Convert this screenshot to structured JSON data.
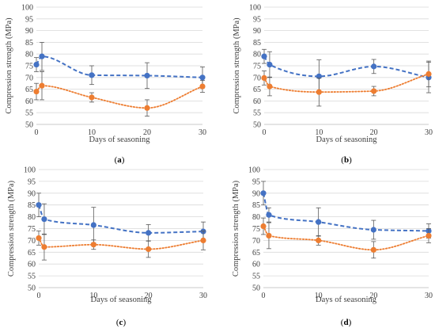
{
  "colors": {
    "series1": "#4472C4",
    "series2": "#ED7D31",
    "grid": "#d9d9d9",
    "axis": "#bfbfbf",
    "text": "#404040"
  },
  "chart_data": [
    {
      "type": "line",
      "panel_label": [
        "(",
        "a",
        ")"
      ],
      "xlabel": "Days of seasoning",
      "ylabel": "Compression strength (MPa)",
      "xlim": [
        0,
        30
      ],
      "ylim": [
        50,
        100
      ],
      "xticks": [
        0,
        10,
        20,
        30
      ],
      "yticks": [
        50,
        55,
        60,
        65,
        70,
        75,
        80,
        85,
        90,
        95,
        100
      ],
      "grid": true,
      "legend": "none",
      "series": [
        {
          "x": [
            0,
            1,
            10,
            20,
            30
          ],
          "y": [
            75.5,
            79,
            71,
            70.8,
            70
          ],
          "err": [
            3,
            6,
            4,
            5.5,
            4.5
          ],
          "style": "dashed"
        },
        {
          "x": [
            0,
            1,
            10,
            20,
            30
          ],
          "y": [
            64,
            66.5,
            61.5,
            57,
            66.2
          ],
          "err": [
            3.5,
            6,
            2,
            3.5,
            2.5
          ],
          "style": "dotted"
        }
      ]
    },
    {
      "type": "line",
      "panel_label": [
        "(",
        "b",
        ")"
      ],
      "xlabel": "Days of seasoning",
      "ylabel": "Compression strength (MPa)",
      "xlim": [
        0,
        30
      ],
      "ylim": [
        50,
        100
      ],
      "xticks": [
        0,
        10,
        20,
        30
      ],
      "yticks": [
        50,
        55,
        60,
        65,
        70,
        75,
        80,
        85,
        90,
        95,
        100
      ],
      "grid": true,
      "legend": "none",
      "series": [
        {
          "x": [
            0,
            1,
            10,
            20,
            30
          ],
          "y": [
            79,
            75.5,
            70.5,
            74.7,
            70
          ],
          "err": [
            3,
            5.5,
            7,
            3,
            6.5
          ],
          "style": "dashed"
        },
        {
          "x": [
            0,
            1,
            10,
            20,
            30
          ],
          "y": [
            69.8,
            66.2,
            63.8,
            64.2,
            71.5
          ],
          "err": [
            3,
            4,
            6,
            2,
            5.5
          ],
          "style": "dotted"
        }
      ]
    },
    {
      "type": "line",
      "panel_label": [
        "(",
        "c",
        ")"
      ],
      "xlabel": "Days of seasoning",
      "ylabel": "Compression strength (MPa)",
      "xlim": [
        0,
        30
      ],
      "ylim": [
        50,
        100
      ],
      "xticks": [
        0,
        10,
        20,
        30
      ],
      "yticks": [
        50,
        55,
        60,
        65,
        70,
        75,
        80,
        85,
        90,
        95,
        100
      ],
      "grid": true,
      "legend": "none",
      "series": [
        {
          "x": [
            0,
            1,
            10,
            20,
            30
          ],
          "y": [
            85,
            79,
            76.5,
            73.2,
            73.8
          ],
          "err": [
            5,
            6.5,
            7.5,
            3.5,
            4
          ],
          "style": "dashed"
        },
        {
          "x": [
            0,
            1,
            10,
            20,
            30
          ],
          "y": [
            71,
            67.2,
            68.2,
            66.3,
            70
          ],
          "err": [
            3,
            5.5,
            2,
            3.5,
            4
          ],
          "style": "dotted"
        }
      ]
    },
    {
      "type": "line",
      "panel_label": [
        "(",
        "d",
        ")"
      ],
      "xlabel": "Days of seasoning",
      "ylabel": "Compression strength (MPa)",
      "xlim": [
        0,
        30
      ],
      "ylim": [
        50,
        100
      ],
      "xticks": [
        0,
        10,
        20,
        30
      ],
      "yticks": [
        50,
        55,
        60,
        65,
        70,
        75,
        80,
        85,
        90,
        95,
        100
      ],
      "grid": true,
      "legend": "none",
      "series": [
        {
          "x": [
            0,
            1,
            10,
            20,
            30
          ],
          "y": [
            90,
            80.8,
            77.8,
            74.5,
            74
          ],
          "err": [
            5,
            3,
            6,
            4,
            3
          ],
          "style": "dashed"
        },
        {
          "x": [
            0,
            1,
            10,
            20,
            30
          ],
          "y": [
            76,
            72,
            70,
            66,
            72
          ],
          "err": [
            3.5,
            5.5,
            2,
            3.5,
            3
          ],
          "style": "dotted"
        }
      ]
    }
  ]
}
